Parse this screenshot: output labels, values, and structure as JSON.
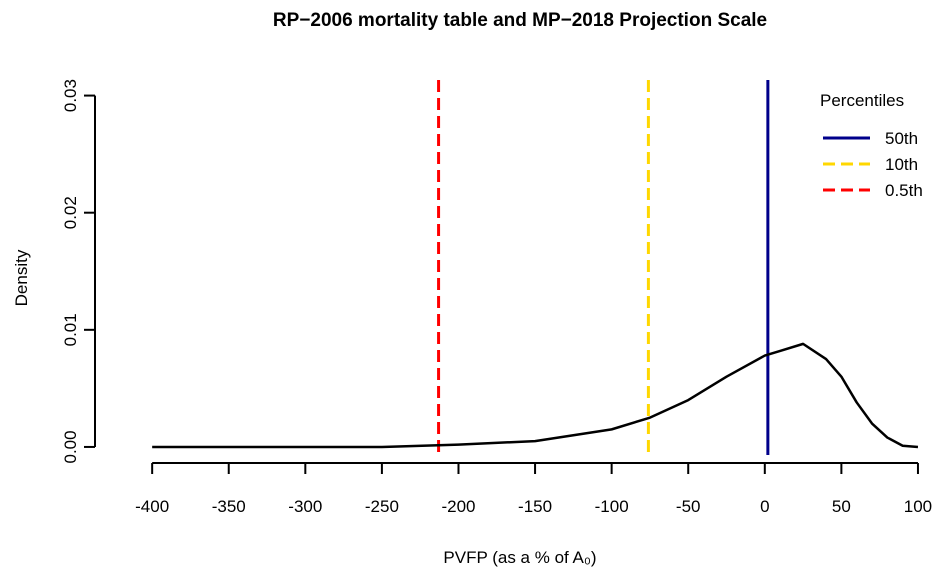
{
  "chart_data": {
    "type": "line",
    "title": "RP−2006 mortality table and MP−2018 Projection Scale",
    "x_label": "PVFP (as a % of A₀)",
    "y_label": "Density",
    "x": [
      -400,
      -300,
      -250,
      -200,
      -150,
      -100,
      -75,
      -50,
      -25,
      0,
      10,
      25,
      40,
      50,
      60,
      70,
      80,
      90,
      100
    ],
    "series": [
      {
        "color": "#000000",
        "values": [
          0,
          0,
          0,
          0.0002,
          0.0005,
          0.0015,
          0.0025,
          0.004,
          0.006,
          0.0078,
          0.0082,
          0.0088,
          0.0075,
          0.006,
          0.0038,
          0.002,
          0.0008,
          0.0001,
          0
        ]
      }
    ],
    "legend_title": "Percentiles",
    "legend": "top-right",
    "vlines": [
      {
        "name": "50th",
        "color": "#00008b",
        "value": 2,
        "dashed": false
      },
      {
        "name": "10th",
        "color": "#ffd700",
        "value": -76,
        "dashed": true
      },
      {
        "name": "0.5th",
        "color": "#ff0000",
        "value": -213,
        "dashed": true
      }
    ],
    "xlim": [
      -421,
      117
    ],
    "ylim": [
      -0.0012,
      0.0315
    ],
    "xticks": [
      -400,
      -350,
      -300,
      -250,
      -200,
      -150,
      -100,
      -50,
      0,
      50,
      100
    ],
    "yticks": [
      {
        "value": 0,
        "label": "0.00"
      },
      {
        "value": 0.01,
        "label": "0.01"
      },
      {
        "value": 0.02,
        "label": "0.02"
      },
      {
        "value": 0.03,
        "label": "0.03"
      }
    ]
  }
}
